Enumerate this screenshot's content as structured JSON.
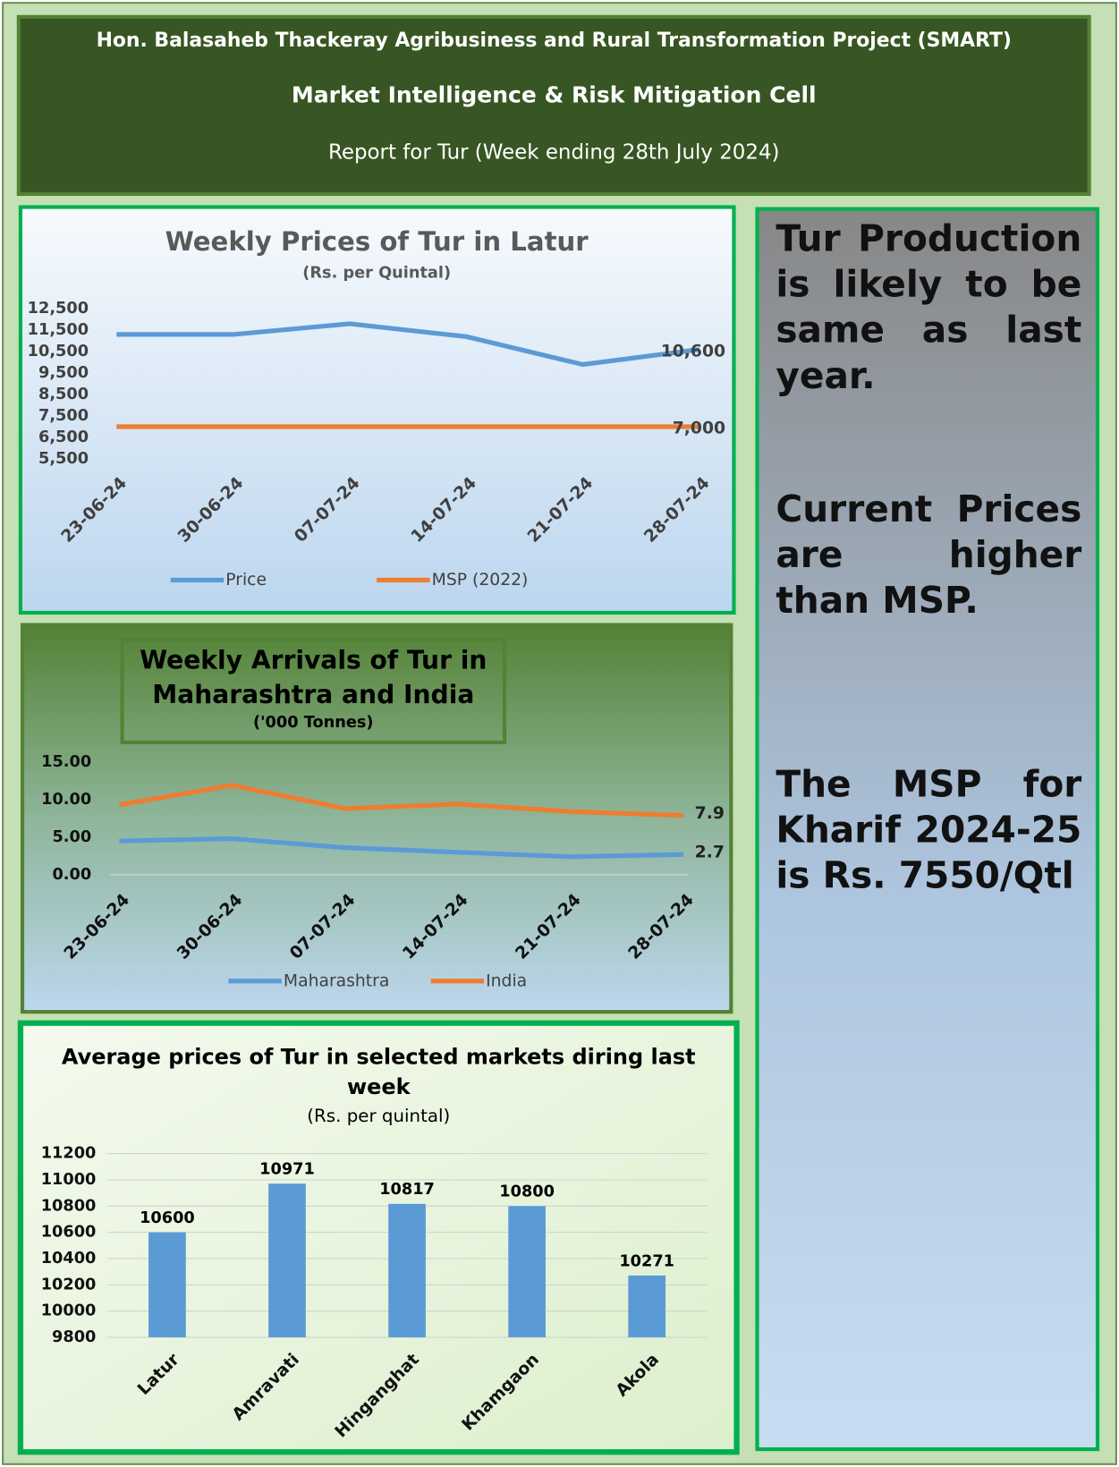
{
  "header": {
    "project": "Hon. Balasaheb Thackeray Agribusiness and Rural Transformation Project (SMART)",
    "cell": "Market Intelligence & Risk Mitigation Cell",
    "report": "Report for Tur (Week ending  28th July 2024)"
  },
  "notes": [
    "Tur Production is likely to be same as last year.",
    "Current Prices are higher than MSP.",
    "The MSP for Kharif 2024-25 is Rs. 7550/Qtl"
  ],
  "chart_data": [
    {
      "type": "line",
      "title": "Weekly Prices of Tur in Latur",
      "subtitle": "(Rs. per Quintal)",
      "categories": [
        "23-06-24",
        "30-06-24",
        "07-07-24",
        "14-07-24",
        "21-07-24",
        "28-07-24"
      ],
      "series": [
        {
          "name": "Price",
          "color": "#5b9bd5",
          "values": [
            11300,
            11300,
            11800,
            11200,
            9900,
            10600
          ],
          "value_labels": [
            null,
            null,
            null,
            null,
            null,
            "10,600"
          ]
        },
        {
          "name": "MSP (2022)",
          "color": "#ed7d31",
          "values": [
            7000,
            7000,
            7000,
            7000,
            7000,
            7000
          ],
          "value_labels": [
            null,
            null,
            null,
            null,
            null,
            "7,000"
          ]
        }
      ],
      "ylim": [
        5500,
        12500
      ],
      "yticks": [
        {
          "value": 5500,
          "label": "5,500"
        },
        {
          "value": 6500,
          "label": "6,500"
        },
        {
          "value": 7500,
          "label": "7,500"
        },
        {
          "value": 8500,
          "label": "8,500"
        },
        {
          "value": 9500,
          "label": "9,500"
        },
        {
          "value": 10500,
          "label": "10,500"
        },
        {
          "value": 11500,
          "label": "11,500"
        },
        {
          "value": 12500,
          "label": "12,500"
        }
      ],
      "grid": false,
      "legend": "bottom"
    },
    {
      "type": "line",
      "title": "Weekly Arrivals of Tur in Maharashtra and India",
      "subtitle": "('000 Tonnes)",
      "categories": [
        "23-06-24",
        "30-06-24",
        "07-07-24",
        "14-07-24",
        "21-07-24",
        "28-07-24"
      ],
      "series": [
        {
          "name": "Maharashtra",
          "color": "#5b9bd5",
          "values": [
            4.5,
            4.8,
            3.6,
            3.0,
            2.4,
            2.7
          ]
        },
        {
          "name": "India",
          "color": "#ed7d31",
          "values": [
            9.3,
            11.9,
            8.8,
            9.4,
            8.4,
            7.9
          ]
        }
      ],
      "label_last": true,
      "ylim": [
        0,
        15
      ],
      "yticks": [
        {
          "value": 0,
          "label": "0.00"
        },
        {
          "value": 5,
          "label": "5.00"
        },
        {
          "value": 10,
          "label": "10.00"
        },
        {
          "value": 15,
          "label": "15.00"
        }
      ],
      "grid": false,
      "legend": "bottom"
    },
    {
      "type": "bar",
      "title": "Average prices of Tur in selected markets diring last week",
      "subtitle": "(Rs. per quintal)",
      "categories": [
        "Latur",
        "Amravati",
        "Hinganghat",
        "Khamgaon",
        "Akola"
      ],
      "values": [
        10600,
        10971,
        10817,
        10800,
        10271
      ],
      "color": "#5b9bd5",
      "show_values": true,
      "ylim": [
        9800,
        11200
      ],
      "yticks": [
        9800,
        10000,
        10200,
        10400,
        10600,
        10800,
        11000,
        11200
      ],
      "grid": true
    }
  ]
}
